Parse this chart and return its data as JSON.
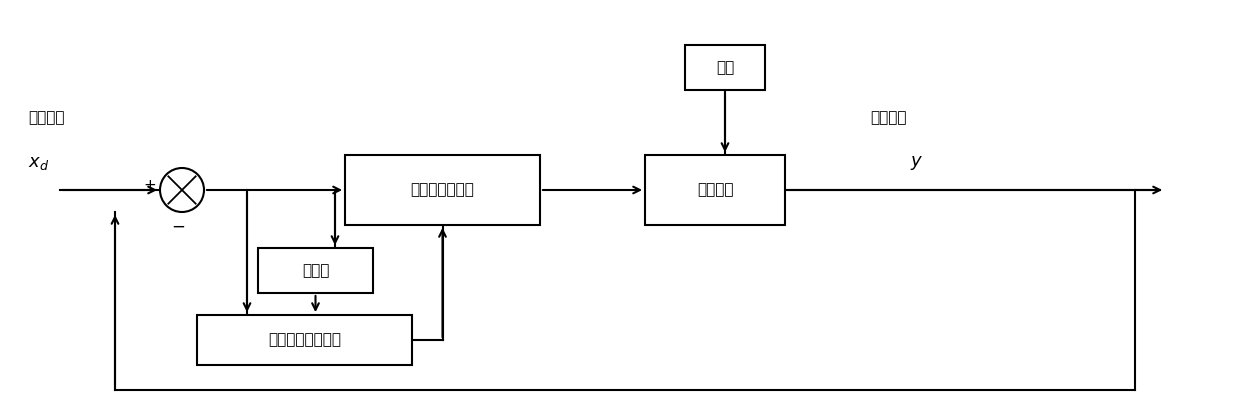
{
  "bg_color": "#ffffff",
  "line_color": "#000000",
  "font_size": 11,
  "labels": {
    "input_top": "给定输入",
    "input_var": "$x_d$",
    "output_top": "控制输出",
    "output_var": "$y$",
    "disturbance": "干扰",
    "fuzzy_ctrl": "模糊滑模控制器",
    "plant": "控制对象",
    "sliding": "滑模面",
    "adaptive": "自适应反步控制器",
    "plus": "+",
    "minus": "−"
  }
}
